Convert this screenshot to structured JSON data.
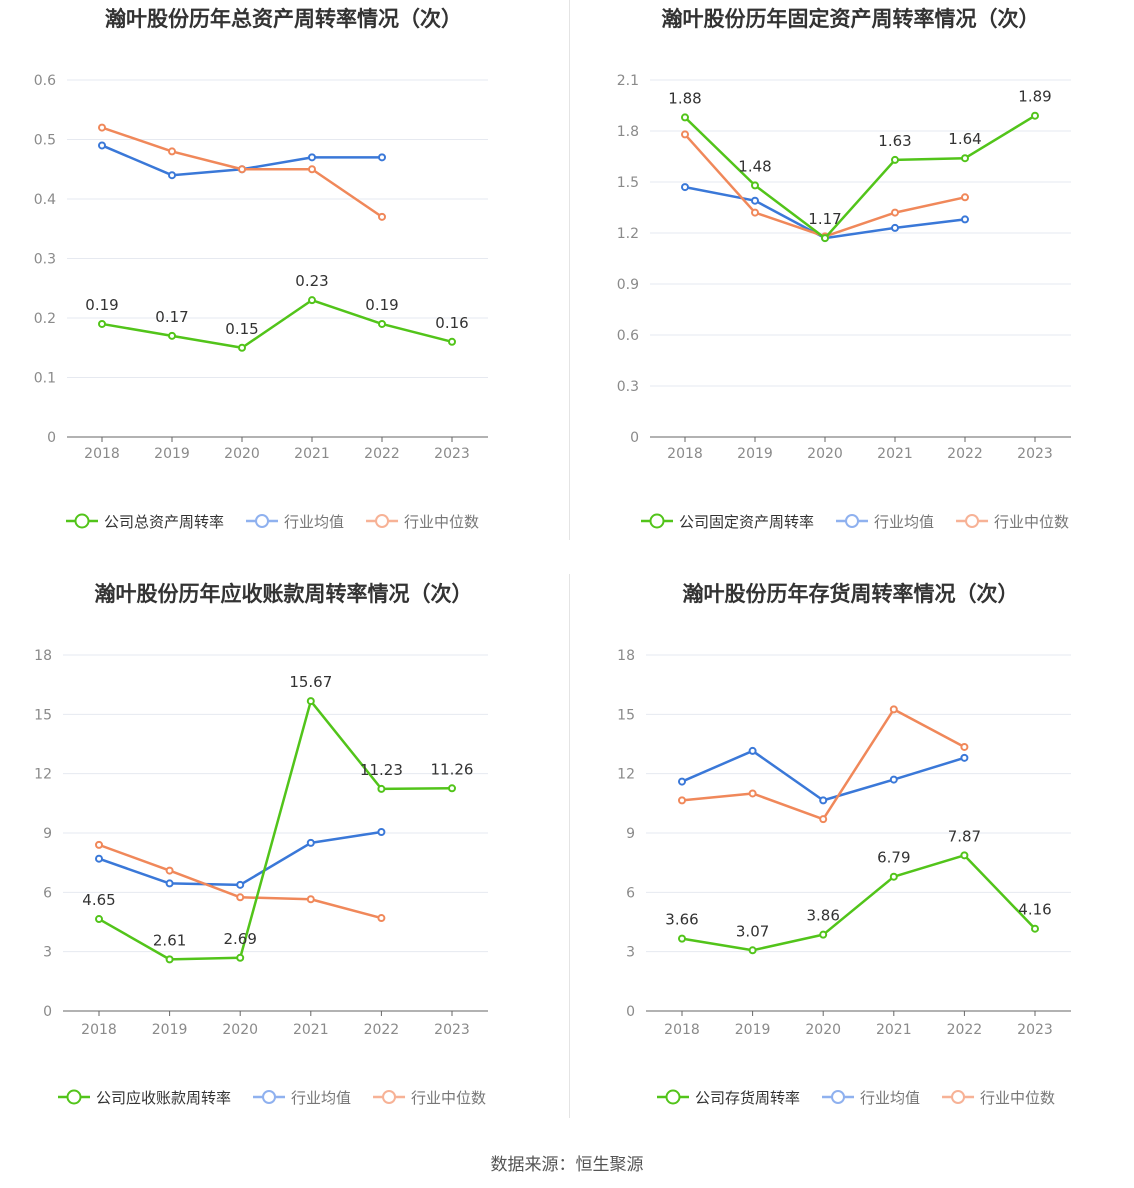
{
  "footer": "数据来源：恒生聚源",
  "colors": {
    "company": "#52c41a",
    "industry_avg": "#3a78d8",
    "industry_median": "#f0885a",
    "legend_avg": "#8fb1ef",
    "legend_median": "#f7b296"
  },
  "chart_data": [
    {
      "type": "line",
      "title": "瀚叶股份历年总资产周转率情况（次）",
      "categories": [
        "2018",
        "2019",
        "2020",
        "2021",
        "2022",
        "2023"
      ],
      "yticks": [
        "0",
        "0.1",
        "0.2",
        "0.3",
        "0.4",
        "0.5",
        "0.6"
      ],
      "ylim": [
        0,
        0.6
      ],
      "series": [
        {
          "name": "公司总资产周转率",
          "role": "company",
          "values": [
            0.19,
            0.17,
            0.15,
            0.23,
            0.19,
            0.16
          ],
          "labels": [
            "0.19",
            "0.17",
            "0.15",
            "0.23",
            "0.19",
            "0.16"
          ]
        },
        {
          "name": "行业均值",
          "role": "industry_avg",
          "values": [
            0.49,
            0.44,
            0.45,
            0.47,
            0.47,
            null
          ]
        },
        {
          "name": "行业中位数",
          "role": "industry_median",
          "values": [
            0.52,
            0.48,
            0.45,
            0.45,
            0.37,
            null
          ]
        }
      ]
    },
    {
      "type": "line",
      "title": "瀚叶股份历年固定资产周转率情况（次）",
      "categories": [
        "2018",
        "2019",
        "2020",
        "2021",
        "2022",
        "2023"
      ],
      "yticks": [
        "0",
        "0.3",
        "0.6",
        "0.9",
        "1.2",
        "1.5",
        "1.8",
        "2.1"
      ],
      "ylim": [
        0,
        2.1
      ],
      "series": [
        {
          "name": "公司固定资产周转率",
          "role": "company",
          "values": [
            1.88,
            1.48,
            1.17,
            1.63,
            1.64,
            1.89
          ],
          "labels": [
            "1.88",
            "1.48",
            "1.17",
            "1.63",
            "1.64",
            "1.89"
          ]
        },
        {
          "name": "行业均值",
          "role": "industry_avg",
          "values": [
            1.47,
            1.39,
            1.17,
            1.23,
            1.28,
            null
          ]
        },
        {
          "name": "行业中位数",
          "role": "industry_median",
          "values": [
            1.78,
            1.32,
            1.18,
            1.32,
            1.41,
            null
          ]
        }
      ]
    },
    {
      "type": "line",
      "title": "瀚叶股份历年应收账款周转率情况（次）",
      "categories": [
        "2018",
        "2019",
        "2020",
        "2021",
        "2022",
        "2023"
      ],
      "yticks": [
        "0",
        "3",
        "6",
        "9",
        "12",
        "15",
        "18"
      ],
      "ylim": [
        0,
        18
      ],
      "series": [
        {
          "name": "公司应收账款周转率",
          "role": "company",
          "values": [
            4.65,
            2.61,
            2.69,
            15.67,
            11.23,
            11.26
          ],
          "labels": [
            "4.65",
            "2.61",
            "2.69",
            "15.67",
            "11.23",
            "11.26"
          ]
        },
        {
          "name": "行业均值",
          "role": "industry_avg",
          "values": [
            7.7,
            6.45,
            6.38,
            8.5,
            9.05,
            null
          ]
        },
        {
          "name": "行业中位数",
          "role": "industry_median",
          "values": [
            8.4,
            7.1,
            5.75,
            5.65,
            4.7,
            null
          ]
        }
      ]
    },
    {
      "type": "line",
      "title": "瀚叶股份历年存货周转率情况（次）",
      "categories": [
        "2018",
        "2019",
        "2020",
        "2021",
        "2022",
        "2023"
      ],
      "yticks": [
        "0",
        "3",
        "6",
        "9",
        "12",
        "15",
        "18"
      ],
      "ylim": [
        0,
        18
      ],
      "series": [
        {
          "name": "公司存货周转率",
          "role": "company",
          "values": [
            3.66,
            3.07,
            3.86,
            6.79,
            7.87,
            4.16
          ],
          "labels": [
            "3.66",
            "3.07",
            "3.86",
            "6.79",
            "7.87",
            "4.16"
          ]
        },
        {
          "name": "行业均值",
          "role": "industry_avg",
          "values": [
            11.6,
            13.15,
            10.65,
            11.7,
            12.8,
            null
          ]
        },
        {
          "name": "行业中位数",
          "role": "industry_median",
          "values": [
            10.65,
            11.0,
            9.7,
            15.25,
            13.35,
            null
          ]
        }
      ]
    }
  ]
}
